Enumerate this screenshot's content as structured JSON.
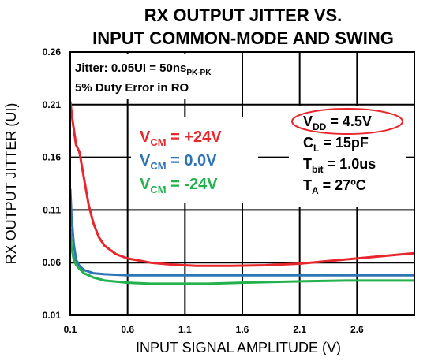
{
  "chart_data": {
    "type": "line",
    "title_line1": "RX OUTPUT JITTER VS.",
    "title_line2": "INPUT COMMON-MODE AND SWING",
    "xlabel": "INPUT SIGNAL AMPLITUDE (V)",
    "ylabel": "RX OUTPUT JITTER (UI)",
    "xlim": [
      0.1,
      3.1
    ],
    "ylim": [
      0.01,
      0.26
    ],
    "x_ticks": [
      "0.1",
      "0.6",
      "1.1",
      "1.6",
      "2.1",
      "2.6"
    ],
    "y_ticks": [
      "0.01",
      "0.06",
      "0.11",
      "0.16",
      "0.21",
      "0.26"
    ],
    "grid": true,
    "note_line1": {
      "main": "Jitter: 0.05UI = 50ns",
      "sub": "PK-PK"
    },
    "note_line2": "5% Duty Error in RO",
    "series": [
      {
        "name": "+24V",
        "color": "#e8262b",
        "label_prefix": "V",
        "label_sub": "CM",
        "label_value": " = +24V",
        "x": [
          0.1,
          0.12,
          0.15,
          0.18,
          0.22,
          0.26,
          0.3,
          0.35,
          0.4,
          0.5,
          0.6,
          0.8,
          1.0,
          1.2,
          1.5,
          1.8,
          2.1,
          2.4,
          2.7,
          3.1
        ],
        "y": [
          0.213,
          0.195,
          0.172,
          0.165,
          0.14,
          0.115,
          0.098,
          0.084,
          0.076,
          0.068,
          0.064,
          0.06,
          0.058,
          0.057,
          0.057,
          0.0575,
          0.059,
          0.062,
          0.065,
          0.069
        ]
      },
      {
        "name": "0.0V",
        "color": "#2e75b6",
        "label_prefix": "V",
        "label_sub": "CM",
        "label_value": " = 0.0V",
        "x": [
          0.1,
          0.11,
          0.13,
          0.15,
          0.18,
          0.22,
          0.3,
          0.4,
          0.6,
          1.0,
          1.5,
          2.0,
          2.5,
          3.1
        ],
        "y": [
          0.13,
          0.105,
          0.078,
          0.063,
          0.057,
          0.053,
          0.05,
          0.049,
          0.048,
          0.048,
          0.048,
          0.048,
          0.048,
          0.048
        ]
      },
      {
        "name": "-24V",
        "color": "#22b14c",
        "label_prefix": "V",
        "label_sub": "CM",
        "label_value": " = -24V",
        "x": [
          0.1,
          0.11,
          0.13,
          0.15,
          0.18,
          0.22,
          0.3,
          0.4,
          0.6,
          0.8,
          1.0,
          1.3,
          1.6,
          2.0,
          2.5,
          3.1
        ],
        "y": [
          0.092,
          0.075,
          0.063,
          0.058,
          0.054,
          0.05,
          0.046,
          0.043,
          0.041,
          0.04,
          0.04,
          0.04,
          0.041,
          0.042,
          0.043,
          0.043
        ]
      }
    ],
    "conditions": [
      {
        "main": "V",
        "sub": "DD",
        "rest": " = 4.5V",
        "circled": true
      },
      {
        "main": "C",
        "sub": "L",
        "rest": " = 15pF",
        "circled": false
      },
      {
        "main": "T",
        "sub": "bit",
        "rest": " = 1.0us",
        "circled": false
      },
      {
        "main": "T",
        "sub": "A",
        "rest": " = 27ºC",
        "circled": false
      }
    ],
    "circle_color": "#e8262b"
  }
}
